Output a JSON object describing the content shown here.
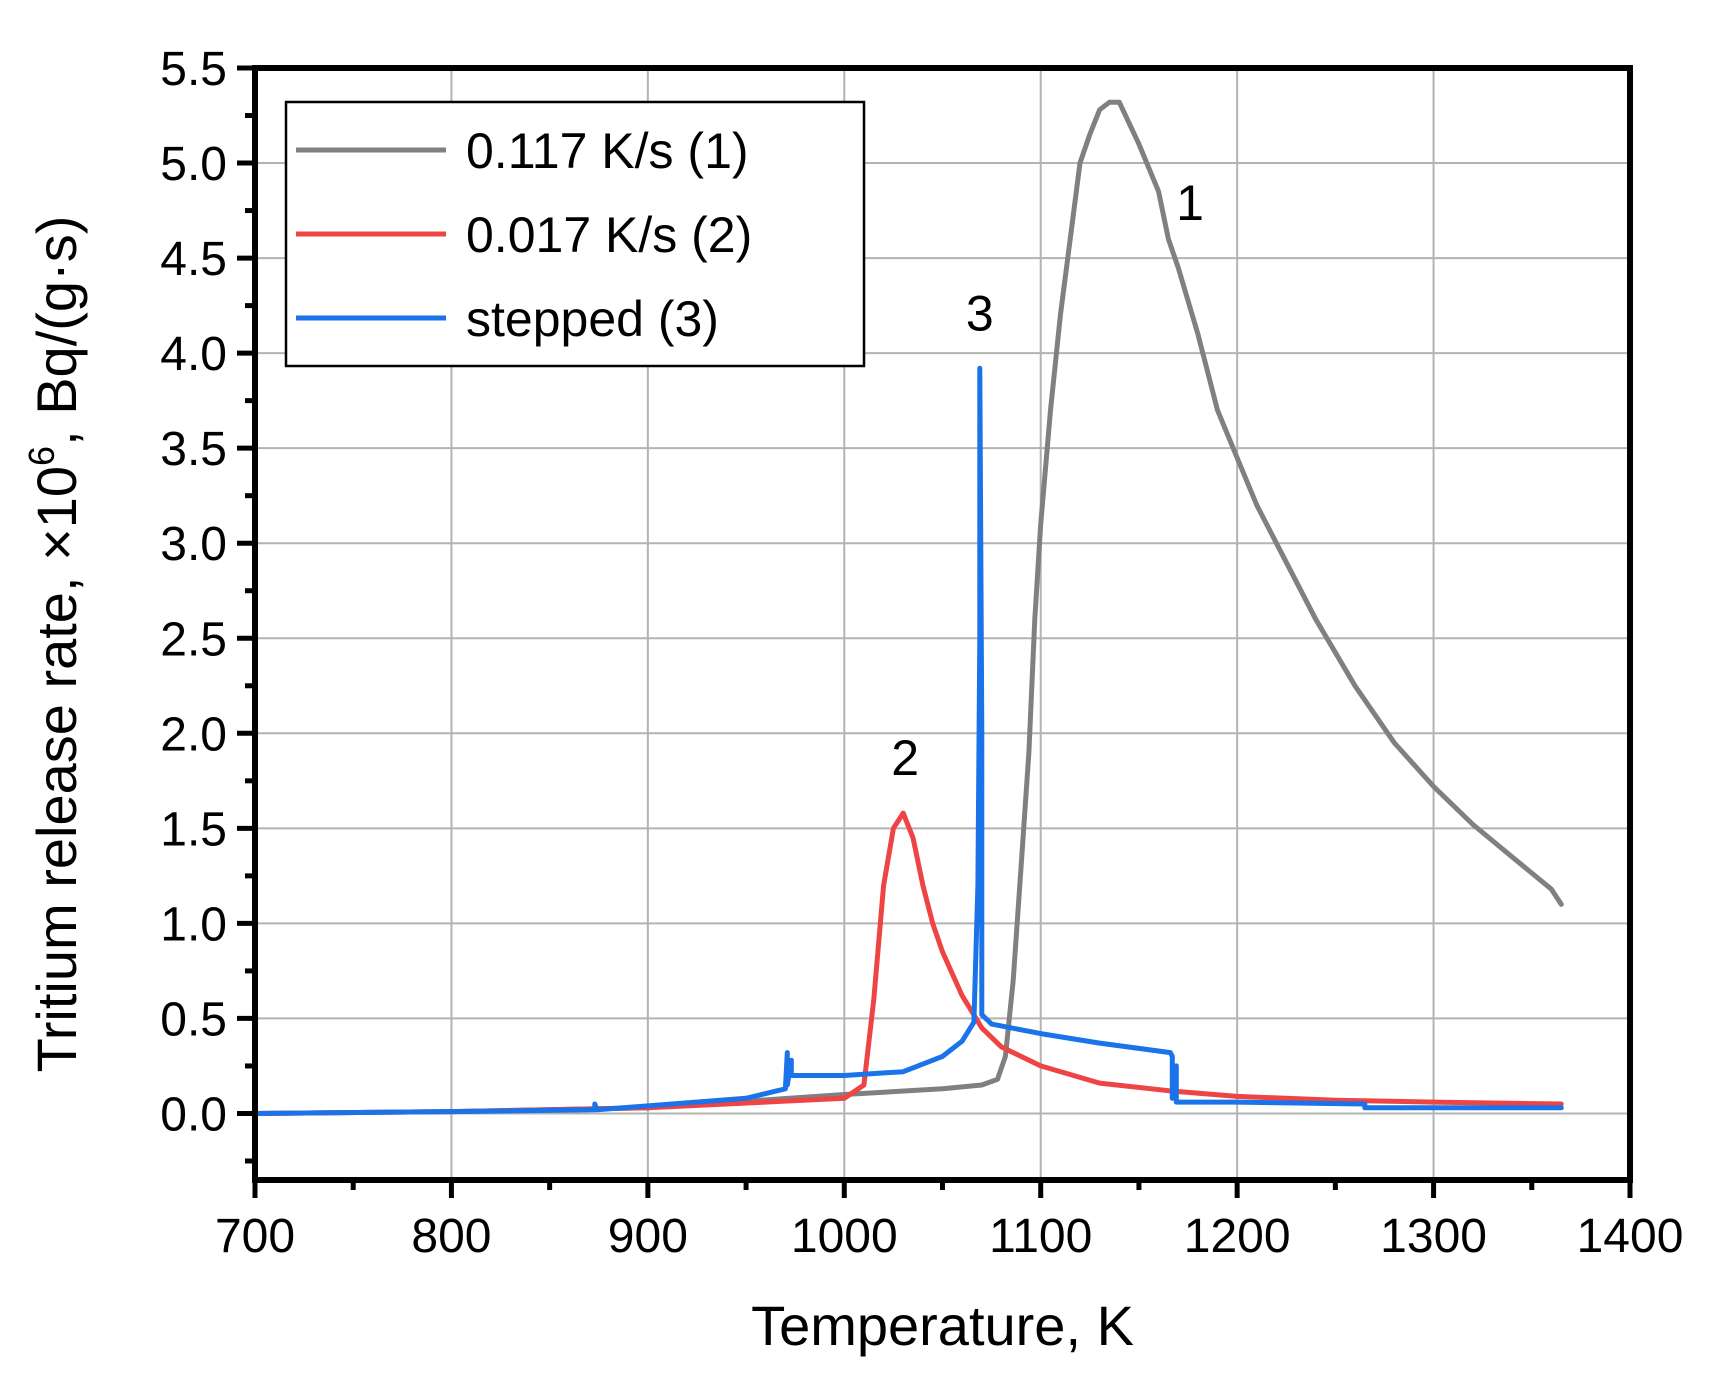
{
  "chart_data": {
    "type": "line",
    "xlabel": "Temperature, K",
    "ylabel_parts": {
      "main": "Tritium release rate, ×10",
      "sup": "6",
      "tail": ", Bq/(g·s)"
    },
    "xlim": [
      700,
      1400
    ],
    "ylim": [
      -0.35,
      5.5
    ],
    "xticks": [
      700,
      800,
      900,
      1000,
      1100,
      1200,
      1300,
      1400
    ],
    "yticks": [
      0.0,
      0.5,
      1.0,
      1.5,
      2.0,
      2.5,
      3.0,
      3.5,
      4.0,
      4.5,
      5.0,
      5.5
    ],
    "xtick_labels": [
      "700",
      "800",
      "900",
      "1000",
      "1100",
      "1200",
      "1300",
      "1400"
    ],
    "ytick_labels": [
      "0.0",
      "0.5",
      "1.0",
      "1.5",
      "2.0",
      "2.5",
      "3.0",
      "3.5",
      "4.0",
      "4.5",
      "5.0",
      "5.5"
    ],
    "grid": true,
    "legend_position": "top-left",
    "series": [
      {
        "name": "0.117 K/s (1)",
        "color": "#808080",
        "x": [
          700,
          800,
          900,
          1000,
          1050,
          1070,
          1078,
          1082,
          1086,
          1090,
          1094,
          1097,
          1100,
          1105,
          1110,
          1115,
          1120,
          1125,
          1130,
          1135,
          1140,
          1150,
          1160,
          1165,
          1170,
          1180,
          1190,
          1200,
          1210,
          1220,
          1240,
          1260,
          1280,
          1300,
          1320,
          1340,
          1360,
          1365
        ],
        "y": [
          0.0,
          0.01,
          0.03,
          0.1,
          0.13,
          0.15,
          0.18,
          0.3,
          0.7,
          1.3,
          1.9,
          2.6,
          3.1,
          3.7,
          4.2,
          4.6,
          5.0,
          5.15,
          5.28,
          5.32,
          5.32,
          5.1,
          4.85,
          4.6,
          4.45,
          4.1,
          3.7,
          3.45,
          3.2,
          3.0,
          2.6,
          2.25,
          1.95,
          1.72,
          1.52,
          1.35,
          1.18,
          1.1
        ]
      },
      {
        "name": "0.017 K/s (2)",
        "color": "#ee4444",
        "x": [
          700,
          800,
          900,
          1000,
          1010,
          1015,
          1020,
          1025,
          1030,
          1035,
          1040,
          1045,
          1050,
          1060,
          1070,
          1080,
          1100,
          1130,
          1165,
          1200,
          1250,
          1300,
          1365
        ],
        "y": [
          0.0,
          0.01,
          0.03,
          0.08,
          0.15,
          0.6,
          1.2,
          1.5,
          1.58,
          1.45,
          1.2,
          1.0,
          0.85,
          0.62,
          0.45,
          0.35,
          0.25,
          0.16,
          0.12,
          0.09,
          0.07,
          0.06,
          0.05
        ]
      },
      {
        "name": "stepped (3)",
        "color": "#1a73e8",
        "x": [
          700,
          800,
          873,
          873,
          874,
          900,
          950,
          970,
          971,
          971,
          973,
          973,
          1000,
          1030,
          1050,
          1060,
          1066,
          1068,
          1069,
          1069,
          1070,
          1070,
          1075,
          1100,
          1130,
          1166,
          1167,
          1167,
          1169,
          1169,
          1200,
          1264,
          1265,
          1265,
          1300,
          1365
        ],
        "y": [
          0.0,
          0.01,
          0.02,
          0.05,
          0.02,
          0.04,
          0.08,
          0.13,
          0.32,
          0.15,
          0.28,
          0.2,
          0.2,
          0.22,
          0.3,
          0.38,
          0.48,
          1.2,
          2.5,
          3.92,
          2.0,
          0.52,
          0.47,
          0.42,
          0.37,
          0.32,
          0.3,
          0.08,
          0.25,
          0.06,
          0.06,
          0.05,
          0.05,
          0.03,
          0.03,
          0.03
        ]
      }
    ],
    "annotations": [
      {
        "text": "1",
        "x": 1176,
        "y": 4.7
      },
      {
        "text": "2",
        "x": 1031,
        "y": 1.78
      },
      {
        "text": "3",
        "x": 1069,
        "y": 4.12
      }
    ]
  }
}
